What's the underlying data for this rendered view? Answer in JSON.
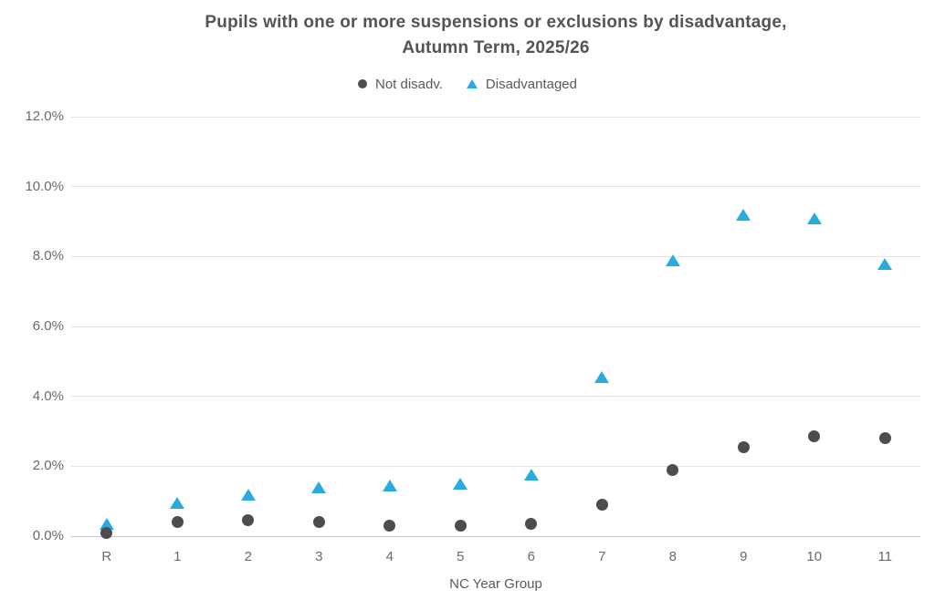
{
  "chart_data": {
    "type": "scatter",
    "title": "Pupils with one or more suspensions or exclusions by disadvantage, Autumn Term, 2025/26",
    "title_lines": [
      "Pupils with one or more suspensions or exclusions by disadvantage,",
      "Autumn Term, 2025/26"
    ],
    "xlabel": "NC Year Group",
    "ylabel": "",
    "categories": [
      "R",
      "1",
      "2",
      "3",
      "4",
      "5",
      "6",
      "7",
      "8",
      "9",
      "10",
      "11"
    ],
    "series": [
      {
        "name": "Not disadv.",
        "marker": "circle",
        "color": "#4d4d4d",
        "values": [
          0.1,
          0.4,
          0.45,
          0.4,
          0.3,
          0.3,
          0.35,
          0.9,
          1.9,
          2.55,
          2.85,
          2.8
        ]
      },
      {
        "name": "Disadvantaged",
        "marker": "triangle",
        "color": "#29abe2",
        "values": [
          0.35,
          0.95,
          1.2,
          1.4,
          1.45,
          1.5,
          1.75,
          4.55,
          7.9,
          9.2,
          9.1,
          7.8
        ]
      }
    ],
    "ylim": [
      0,
      12
    ],
    "yticks": [
      0,
      2,
      4,
      6,
      8,
      10,
      12
    ],
    "ytick_labels": [
      "0.0%",
      "2.0%",
      "4.0%",
      "6.0%",
      "8.0%",
      "10.0%",
      "12.0%"
    ],
    "grid": true,
    "legend_position": "top"
  },
  "style": {
    "grid_color": "#e4e4e4",
    "axis_line_color": "#cbcbcb",
    "tick_label_color": "#6a6a6a",
    "title_color": "#545454",
    "legend_text_color": "#595959",
    "background": "#ffffff"
  }
}
